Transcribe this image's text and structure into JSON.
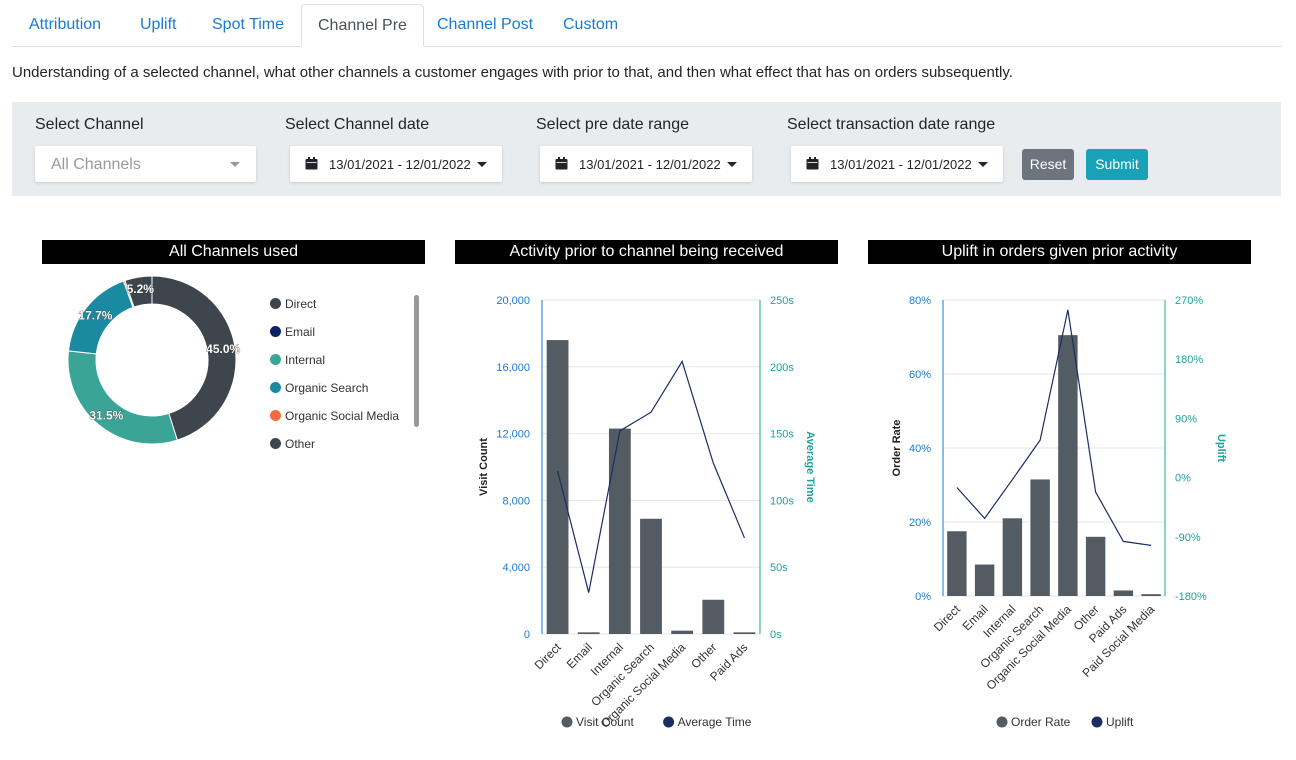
{
  "tabs": [
    {
      "label": "Attribution"
    },
    {
      "label": "Uplift"
    },
    {
      "label": "Spot Time"
    },
    {
      "label": "Channel Pre"
    },
    {
      "label": "Channel Post"
    },
    {
      "label": "Custom"
    }
  ],
  "description": "Understanding of a selected channel, what other channels a customer engages with prior to that, and then what effect that has on orders subsequently.",
  "filters": {
    "select_channel_label": "Select Channel",
    "select_channel_value": "All Channels",
    "channel_date_label": "Select Channel date",
    "channel_date_value": "13/01/2021 - 12/01/2022",
    "pre_range_label": "Select pre date range",
    "pre_range_value": "13/01/2021 - 12/01/2022",
    "txn_range_label": "Select transaction date range",
    "txn_range_value": "13/01/2021 - 12/01/2022",
    "reset_label": "Reset",
    "submit_label": "Submit"
  },
  "panels": {
    "donut_title": "All Channels used",
    "activity_title": "Activity prior to channel being received",
    "uplift_title": "Uplift in orders given prior activity"
  },
  "colors": {
    "direct": "#3d464d",
    "email": "#0b2263",
    "internal": "#3aa596",
    "organic_search": "#1a8aa0",
    "organic_social": "#f26c3d",
    "other": "#3d464d",
    "bar": "#545c63",
    "line": "#1b2c66",
    "axis_left": "#1a7bd0",
    "axis_right": "#1fa39a"
  },
  "chart_data": [
    {
      "type": "pie",
      "title": "All Channels used",
      "donut": true,
      "categories": [
        "Direct",
        "Email",
        "Internal",
        "Organic Search",
        "Organic Social Media",
        "Other"
      ],
      "values": [
        45.0,
        0.0,
        31.5,
        17.7,
        0.3,
        5.2
      ],
      "data_labels": [
        "45.0%",
        "",
        "31.5%",
        "17.7%",
        "",
        "5.2%"
      ],
      "legend": [
        "Direct",
        "Email",
        "Internal",
        "Organic Search",
        "Organic Social Media",
        "Other"
      ],
      "legend_placement": "right"
    },
    {
      "type": "bar",
      "title": "Activity prior to channel being received",
      "categories": [
        "Direct",
        "Email",
        "Internal",
        "Organic Search",
        "Organic Social Media",
        "Other",
        "Paid Ads"
      ],
      "series": [
        {
          "name": "Visit Count",
          "type": "bar",
          "axis": "left",
          "values": [
            17600,
            100,
            12300,
            6900,
            200,
            2050,
            100
          ]
        },
        {
          "name": "Average Time",
          "type": "line",
          "axis": "right",
          "values": [
            122,
            31,
            152,
            166,
            204,
            128,
            72
          ]
        }
      ],
      "ylabel": "Visit Count",
      "ylabel_right": "Average Time",
      "ylim": [
        0,
        20000
      ],
      "ylim_right": [
        0,
        250
      ],
      "yticks": [
        "0",
        "4,000",
        "8,000",
        "12,000",
        "16,000",
        "20,000"
      ],
      "yticks_right": [
        "0s",
        "50s",
        "100s",
        "150s",
        "200s",
        "250s"
      ],
      "legend": [
        "Visit Count",
        "Average Time"
      ],
      "legend_placement": "bottom",
      "grid": true
    },
    {
      "type": "bar",
      "title": "Uplift in orders given prior activity",
      "categories": [
        "Direct",
        "Email",
        "Internal",
        "Organic Search",
        "Organic Social Media",
        "Other",
        "Paid Ads",
        "Paid Social Media"
      ],
      "series": [
        {
          "name": "Order Rate",
          "type": "bar",
          "axis": "left",
          "values": [
            17.5,
            8.5,
            21,
            31.5,
            70.5,
            16,
            1.5,
            0.5
          ]
        },
        {
          "name": "Uplift",
          "type": "line",
          "axis": "right",
          "values": [
            -15,
            -62,
            -3,
            57,
            255,
            -22,
            -97,
            -103
          ]
        }
      ],
      "ylabel": "Order Rate",
      "ylabel_right": "Uplift",
      "ylim": [
        0,
        80
      ],
      "ylim_right": [
        -180,
        270
      ],
      "yticks": [
        "0%",
        "20%",
        "40%",
        "60%",
        "80%"
      ],
      "yticks_right": [
        "-180%",
        "-90%",
        "0%",
        "90%",
        "180%",
        "270%"
      ],
      "legend": [
        "Order Rate",
        "Uplift"
      ],
      "legend_placement": "bottom",
      "grid": true
    }
  ]
}
